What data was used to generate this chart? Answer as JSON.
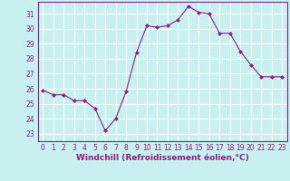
{
  "x": [
    0,
    1,
    2,
    3,
    4,
    5,
    6,
    7,
    8,
    9,
    10,
    11,
    12,
    13,
    14,
    15,
    16,
    17,
    18,
    19,
    20,
    21,
    22,
    23
  ],
  "y": [
    25.9,
    25.6,
    25.6,
    25.2,
    25.2,
    24.7,
    23.2,
    24.0,
    25.8,
    28.4,
    30.2,
    30.1,
    30.2,
    30.6,
    31.5,
    31.1,
    31.0,
    29.7,
    29.7,
    28.5,
    27.6,
    26.8,
    26.8,
    26.8
  ],
  "line_color": "#8B2080",
  "marker": "D",
  "marker_size": 2.0,
  "bg_color": "#c8f0f0",
  "grid_color": "#ffffff",
  "xlabel": "Windchill (Refroidissement éolien,°C)",
  "xlabel_color": "#8B2080",
  "xlabel_fontsize": 6.5,
  "tick_color": "#8B2080",
  "tick_fontsize": 5.5,
  "yticks": [
    23,
    24,
    25,
    26,
    27,
    28,
    29,
    30,
    31
  ],
  "xticks": [
    0,
    1,
    2,
    3,
    4,
    5,
    6,
    7,
    8,
    9,
    10,
    11,
    12,
    13,
    14,
    15,
    16,
    17,
    18,
    19,
    20,
    21,
    22,
    23
  ],
  "ylim": [
    22.5,
    31.8
  ],
  "xlim": [
    -0.5,
    23.5
  ],
  "spine_color": "#8B2080",
  "bottom_spine_color": "#8B2080"
}
